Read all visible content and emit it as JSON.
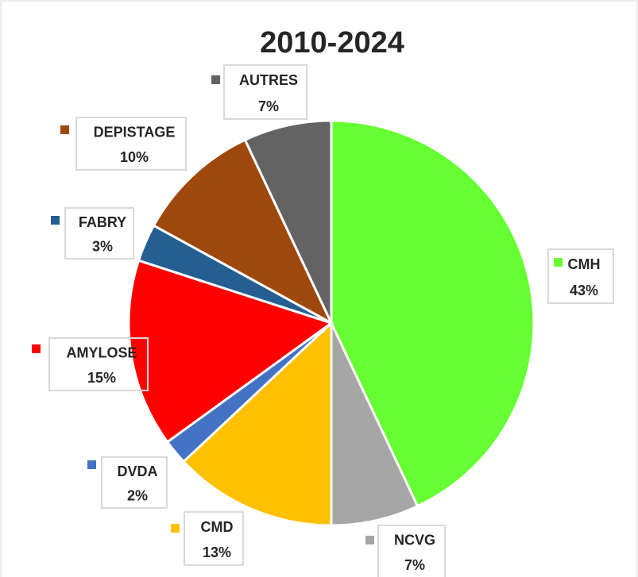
{
  "chart_data": {
    "type": "pie",
    "title": "2010-2024",
    "categories": [
      "CMH",
      "NCVG",
      "CMD",
      "DVDA",
      "AMYLOSE",
      "FABRY",
      "DEPISTAGE",
      "AUTRES"
    ],
    "values": [
      43,
      7,
      13,
      2,
      15,
      3,
      10,
      7
    ],
    "value_labels": [
      "43%",
      "7%",
      "13%",
      "2%",
      "15%",
      "3%",
      "10%",
      "7%"
    ],
    "colors": [
      "#66ff33",
      "#a6a6a6",
      "#ffc000",
      "#4472c4",
      "#ff0000",
      "#255e91",
      "#9e480e",
      "#636363"
    ]
  }
}
